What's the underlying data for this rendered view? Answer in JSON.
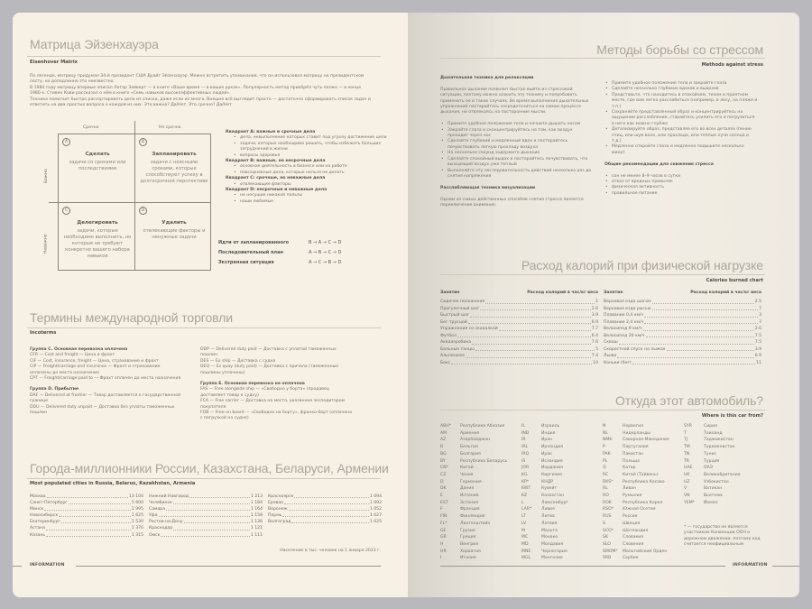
{
  "left": {
    "eisenhower": {
      "title": "Матрица Эйзенхауэра",
      "subtitle": "Eisenhover Matrix",
      "paragraphs": [
        "По легенде, матрицу придумал 34-й президент США Дуайт Эйзенхауэр. Можно встретить упоминания, что он использовал матрицу на президентском посту, но доподлинно это неизвестно.",
        "В 1984 году матрицу впервые описал Лотар Зайверт — в книге «Ваше время — в ваших руках». Популярность метод приобрёл чуть позже — в конце 1980-х. Стивен Кови рассказал о нём в книге «Семь навыков высокоэффективных людей».",
        "Техника помогает быстро рассортировать дела из списка, даже если их много. Внешне всё выглядит просто — достаточно сформировать список задач и ответить на два простых вопроса о каждой из них. Это важно? Да/Нет. Это срочно? Да/Нет"
      ],
      "col_headers": [
        "Срочно",
        "Не срочно"
      ],
      "row_headers": [
        "Важно",
        "Неважно"
      ],
      "quadrants": [
        {
          "letter": "A",
          "title": "Сделать",
          "text": "задачи со сроками или последствиями"
        },
        {
          "letter": "B",
          "title": "Запланировать",
          "text": "задачи с неясными сроками, которые способствуют успеху в долгосрочной перспективе"
        },
        {
          "letter": "C",
          "title": "Делегировать",
          "text": "задачи, которые необходимо выполнить, но которые не требуют конкретно вашего набора навыков"
        },
        {
          "letter": "D",
          "title": "Удалить",
          "text": "отвлекающие факторы и ненужные задачи"
        }
      ],
      "legend": [
        {
          "title": "Квадрант А: важные и срочные дела",
          "items": [
            "дела, невыполнение которых ставит под угрозу достижение цели",
            "задачи, которые необходимо решить, чтобы избежать больших затруднений в жизни",
            "вопросы здоровья"
          ]
        },
        {
          "title": "Квадрант В: важные, но несрочные дела",
          "items": [
            "основная деятельность в бизнесе или на работе",
            "повседневные дела, которые нельзя не делать"
          ]
        },
        {
          "title": "Квадрант С: срочные, но неважные дела",
          "items": [
            "отвлекающие факторы"
          ]
        },
        {
          "title": "Квадрант D: несрочные и неважные дела",
          "items": [
            "не несущие никакой пользы",
            "наши любимые"
          ]
        }
      ],
      "sequences": [
        {
          "label": "Идти от запланированного",
          "order": "B → A → C → D"
        },
        {
          "label": "Последовательный план",
          "order": "A → B → C → D"
        },
        {
          "label": "Экстренная ситуация",
          "order": "A → C → B → D"
        }
      ]
    },
    "incoterms": {
      "title": "Термины международной торговли",
      "subtitle": "Incoterms",
      "col1": [
        {
          "h": "Группа С. Основная перевозка оплачена"
        },
        {
          "t": "CFR — Cost and freight — Цена и фрахт"
        },
        {
          "t": "CIF — Cost, insurance, freight — Цена, страхование и фрахт"
        },
        {
          "t": "CIP — Freight/carriage and insurance — Фрахт и страхование оплачены до места назначения"
        },
        {
          "t": "CPT — Freight/carriage paid to — Фрахт оплачен до места назначения"
        },
        {
          "h": "Группа D. Прибытие"
        },
        {
          "t": "DAF — Delivered at frontier — Товар доставляется к государственной границе"
        },
        {
          "t": "DDU — Delivered duty unpaid — Доставка без уплаты таможенных пошлин"
        }
      ],
      "col2": [
        {
          "t": "DDP — Delivered duty paid — Доставка с уплатой таможенных пошлин"
        },
        {
          "t": "DES — Ex ship — Доставка с судна"
        },
        {
          "t": "DEQ — Ex quay (duty paid) — Доставка с причала (таможенные пошлины уплачены)"
        },
        {
          "h": "Группа Е. Основная перевозка не оплачена"
        },
        {
          "t": "FAS — Free alongside ship — «Свободно у борта» (продавец доставляет товар к судну)"
        },
        {
          "t": "FCA — Free carrier — Доставка на место, указанное экспедитором покупателя"
        },
        {
          "t": "FOB — Free on board — «Свободно на борту», франко-борт (оплачено с погрузкой на судно)"
        }
      ]
    },
    "cities": {
      "title": "Города-миллионники России, Казахстана, Беларуси, Армении",
      "subtitle": "Most populated cities in Russia, Belarus, Kazakhstan, Armenia",
      "cols": [
        [
          [
            "Москва",
            "13 104"
          ],
          [
            "Санкт-Петербург",
            "5 600"
          ],
          [
            "Минск",
            "1 995"
          ],
          [
            "Новосибирск",
            "1 625"
          ],
          [
            "Екатеринбург",
            "1 530"
          ],
          [
            "Астана",
            "1 376"
          ],
          [
            "Казань",
            "1 315"
          ]
        ],
        [
          [
            "Нижний Новгород",
            "1 213"
          ],
          [
            "Челябинск",
            "1 184"
          ],
          [
            "Самара",
            "1 164"
          ],
          [
            "Уфа",
            "1 158"
          ],
          [
            "Ростов-на-Дону",
            "1 136"
          ],
          [
            "Краснодар",
            "1 121"
          ],
          [
            "Омск",
            "1 111"
          ]
        ],
        [
          [
            "Красноярск",
            "1 094"
          ],
          [
            "Ереван",
            "1 092"
          ],
          [
            "Воронеж",
            "1 052"
          ],
          [
            "Пермь",
            "1 027"
          ],
          [
            "Волгоград",
            "1 025"
          ]
        ]
      ],
      "note": "Население в тыс. человек на 1 января 2023 г."
    },
    "footer": "INFORMATION"
  },
  "right": {
    "stress": {
      "title": "Методы борьбы со стрессом",
      "subtitle": "Methods against stress",
      "h1": "Дыхательная техника для релаксации",
      "p1": "Правильное дыхание позволит быстро выйти из стрессовой ситуации, поэтому можно освоить эту технику и попробовать применить ее в таких случаях. Во время выполнения дыхательных упражнений постарайтесь сосредоточиться на самом процессе дыхания, не отвлекаясь на посторонние мысли.",
      "list1": [
        "Примите удобное положение тела и начните дышать носом",
        "Закройте глаза и сконцентрируйтесь на том, как воздух проходит через нос",
        "Сделайте глубокий и медленный вдох и постарайтесь почувствовать легкую прохладу воздуха",
        "На несколько секунд задержите дыхание",
        "Сделайте спокойный выдох и постарайтесь почувствовать, что выходящий воздух уже теплый",
        "Выполняйте эту последовательность действий несколько раз до снятия напряжения"
      ],
      "h2": "Расслабляющая техника визуализации",
      "p2": "Одним из самых действенных способов снятия стресса является переключение внимания.",
      "list2": [
        "Примите удобное положение тела и закройте глаза",
        "Сделайте несколько глубоких вдохов и выдохов",
        "Представьте, что находитесь в спокойном, тихом и приятном месте, где вам легко расслабиться (например, в лесу, на пляже и т.п.)",
        "Сохраняйте представленный образ и концентрируйтесь на ощущении расслабления, старайтесь усилить его и погрузиться в него как можно глубже",
        "Детализируйте образ, представляя его во всех деталях (пение птиц, или шум волн, или прохлада, или теплые лучи солнца и т.д.)",
        "Медленно откройте глаза и медленно подышите несколько минут"
      ],
      "h3": "Общие рекомендации для снижения стресса",
      "list3": [
        "сон не менее 8–9 часов в сутки",
        "отказ от вредных привычек",
        "физическая активность",
        "правильное питание"
      ]
    },
    "calories": {
      "title": "Расход калорий при физической нагрузке",
      "subtitle": "Calories burned chart",
      "col_activity": "Занятие",
      "col_value": "Расход калорий в час/кг веса",
      "cols": [
        [
          [
            "Сидячее положение",
            "1"
          ],
          [
            "Прогулочный шаг",
            "2.6"
          ],
          [
            "Быстрый шаг",
            "3.9"
          ],
          [
            "Бег трусцой",
            "6.9"
          ],
          [
            "Упражнения со скакалкой",
            "7.7"
          ],
          [
            "Футбол",
            "6.4"
          ],
          [
            "Аквааэробика",
            "7.6"
          ],
          [
            "Бальные танцы",
            "5"
          ],
          [
            "Альпинизм",
            "7.4"
          ],
          [
            "Бокс",
            "10"
          ]
        ],
        [
          [
            "Верховая езда шагом",
            "2.5"
          ],
          [
            "Верховая езда рысью",
            "7"
          ],
          [
            "Плавание 0,4 км/ч",
            "3"
          ],
          [
            "Плавание 2,4 км/ч",
            "7"
          ],
          [
            "Велосипед 9 км/ч",
            "2.6"
          ],
          [
            "Велосипед 20 км/ч",
            "7.5"
          ],
          [
            "Сквош",
            "7.5"
          ],
          [
            "Скоростной спуск на лыжах",
            "3.9"
          ],
          [
            "Лыжи",
            "6.9"
          ],
          [
            "Коньки (бег)",
            "11"
          ]
        ]
      ]
    },
    "cars": {
      "title": "Откуда этот автомобиль?",
      "subtitle": "Where is this car from?",
      "cols": [
        [
          [
            "ABH*",
            "Республика Абхазия"
          ],
          [
            "AM",
            "Армения"
          ],
          [
            "AZ",
            "Азербайджан"
          ],
          [
            "B",
            "Бельгия"
          ],
          [
            "BG",
            "Болгария"
          ],
          [
            "BY",
            "Республика Беларусь"
          ],
          [
            "CN*",
            "Китай"
          ],
          [
            "CZ",
            "Чехия"
          ],
          [
            "D",
            "Германия"
          ],
          [
            "DK",
            "Дания"
          ],
          [
            "E",
            "Испания"
          ],
          [
            "EST",
            "Эстония"
          ],
          [
            "F",
            "Франция"
          ],
          [
            "FIN",
            "Финляндия"
          ],
          [
            "FL*",
            "Лихтенштейн"
          ],
          [
            "GE",
            "Грузия"
          ],
          [
            "GR",
            "Греция"
          ],
          [
            "H",
            "Венгрия"
          ],
          [
            "HR",
            "Хорватия"
          ],
          [
            "I",
            "Италия"
          ]
        ],
        [
          [
            "IL",
            "Израиль"
          ],
          [
            "IND",
            "Индия"
          ],
          [
            "IR",
            "Иран"
          ],
          [
            "IRL",
            "Ирландия"
          ],
          [
            "IRQ",
            "Ирак"
          ],
          [
            "IS",
            "Исландия"
          ],
          [
            "JOR",
            "Иордания"
          ],
          [
            "KG",
            "Киргизия"
          ],
          [
            "KP*",
            "КНДР"
          ],
          [
            "KWT",
            "Кувейт"
          ],
          [
            "KZ",
            "Казахстан"
          ],
          [
            "L",
            "Люксембург"
          ],
          [
            "LAR*",
            "Ливия"
          ],
          [
            "LT",
            "Литва"
          ],
          [
            "LV",
            "Латвия"
          ],
          [
            "M",
            "Мальта"
          ],
          [
            "MC",
            "Монако"
          ],
          [
            "MD",
            "Молдавия"
          ],
          [
            "MNE",
            "Черногория"
          ],
          [
            "MGL",
            "Монголия"
          ]
        ],
        [
          [
            "N",
            "Норвегия"
          ],
          [
            "NL",
            "Нидерланды"
          ],
          [
            "NMK",
            "Северная Македония"
          ],
          [
            "P",
            "Португалия"
          ],
          [
            "PAK",
            "Пакистан"
          ],
          [
            "PL",
            "Польша"
          ],
          [
            "Q",
            "Катар"
          ],
          [
            "RC",
            "Китай (Тайвань)"
          ],
          [
            "RKS*",
            "Республика Косово"
          ],
          [
            "RL",
            "Ливан"
          ],
          [
            "RO",
            "Румыния"
          ],
          [
            "ROK",
            "Республика Корея"
          ],
          [
            "RSO*",
            "Южная Осетия"
          ],
          [
            "RUS",
            "Россия"
          ],
          [
            "S",
            "Швеция"
          ],
          [
            "SCO*",
            "Шотландия"
          ],
          [
            "SK",
            "Словакия"
          ],
          [
            "SLO",
            "Словения"
          ],
          [
            "SMOM*",
            "Мальтийский Орден"
          ],
          [
            "SRB",
            "Сербия"
          ]
        ],
        [
          [
            "SYR",
            "Сирия"
          ],
          [
            "T",
            "Таиланд"
          ],
          [
            "TJ",
            "Таджикистан"
          ],
          [
            "TM",
            "Туркменистан"
          ],
          [
            "TN",
            "Тунис"
          ],
          [
            "TR",
            "Турция"
          ],
          [
            "UAE",
            "ОАЭ"
          ],
          [
            "UK",
            "Великобритания"
          ],
          [
            "UZ",
            "Узбекистан"
          ],
          [
            "V",
            "Ватикан"
          ],
          [
            "VN",
            "Вьетнам"
          ],
          [
            "YEM*",
            "Йемен"
          ]
        ]
      ],
      "footnote": "* — государство не является участником Конвенции ООН о дорожном движении, поэтому код считается неофициальным"
    },
    "footer": "INFORMATION"
  }
}
